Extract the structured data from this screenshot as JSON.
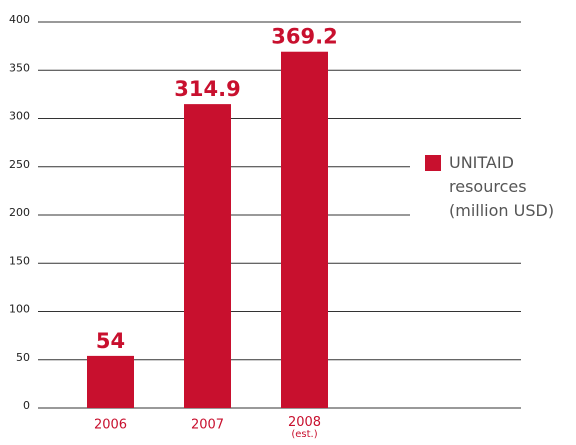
{
  "chart_data": {
    "type": "bar",
    "categories": [
      "2006",
      "2007",
      "2008 (est.)"
    ],
    "series": [
      {
        "name": "UNITAID resources (million USD)",
        "color": "#c8102e",
        "values": [
          54,
          314.9,
          369.2
        ]
      }
    ],
    "ylim": [
      0,
      400
    ],
    "yticks": [
      0,
      50,
      100,
      150,
      200,
      250,
      300,
      350,
      400
    ],
    "grid": true
  }
}
